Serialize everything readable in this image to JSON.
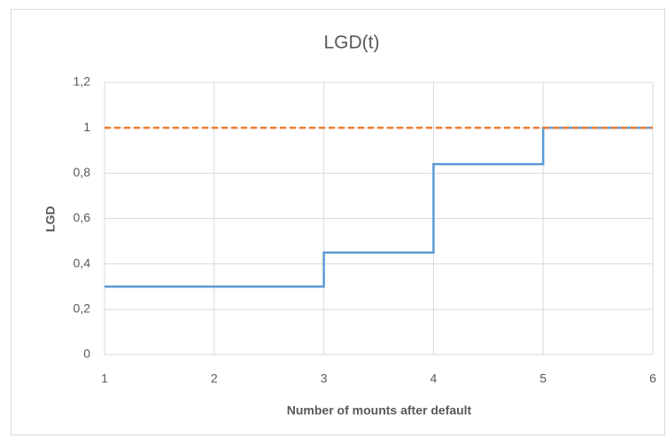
{
  "chart_data": {
    "type": "line",
    "title": "LGD(t)",
    "xlabel": "Number of mounts after default",
    "ylabel": "LGD",
    "xlim": [
      1,
      6
    ],
    "xticks": [
      1,
      2,
      3,
      4,
      5,
      6
    ],
    "ylim": [
      0,
      1.2
    ],
    "yticks": [
      0,
      {
        "value": 0.2,
        "label": "0,2"
      },
      {
        "value": 0.4,
        "label": "0,4"
      },
      {
        "value": 0.6,
        "label": "0,6"
      },
      {
        "value": 0.8,
        "label": "0,8"
      },
      1,
      {
        "value": 1.2,
        "label": "1,2"
      }
    ],
    "grid": true,
    "series": [
      {
        "color": "#5b9bd5",
        "x": [
          1,
          3,
          3,
          4,
          4,
          5,
          5,
          6
        ],
        "values": [
          0.3,
          0.3,
          0.45,
          0.45,
          0.84,
          0.84,
          1,
          1
        ]
      },
      {
        "color": "#ed7d31",
        "dashed": true,
        "x": [
          1,
          6
        ],
        "values": [
          1,
          1
        ]
      }
    ]
  }
}
